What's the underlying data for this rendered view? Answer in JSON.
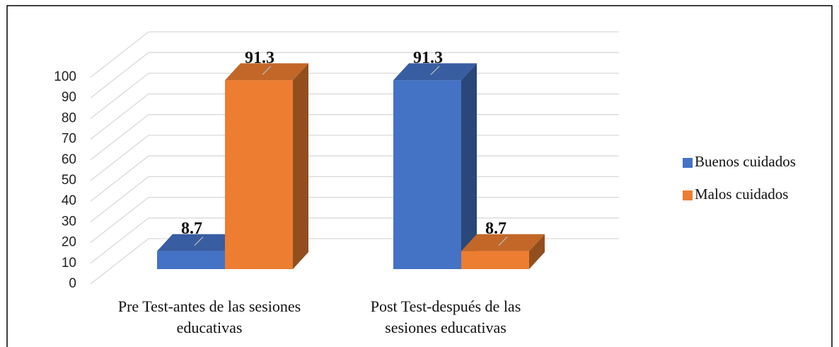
{
  "chart_data": {
    "type": "bar3d",
    "categories": [
      "Pre Test-antes de las sesiones educativas",
      "Post Test-después de las sesiones educativas"
    ],
    "series": [
      {
        "name": "Buenos cuidados",
        "color": "#4472c4",
        "values": [
          8.7,
          91.3
        ]
      },
      {
        "name": "Malos cuidados",
        "color": "#ed7d31",
        "values": [
          91.3,
          8.7
        ]
      }
    ],
    "ylim": [
      0,
      100
    ],
    "yticks": [
      0,
      10,
      20,
      30,
      40,
      50,
      60,
      70,
      80,
      90,
      100
    ],
    "grid": true,
    "legend": "right"
  }
}
